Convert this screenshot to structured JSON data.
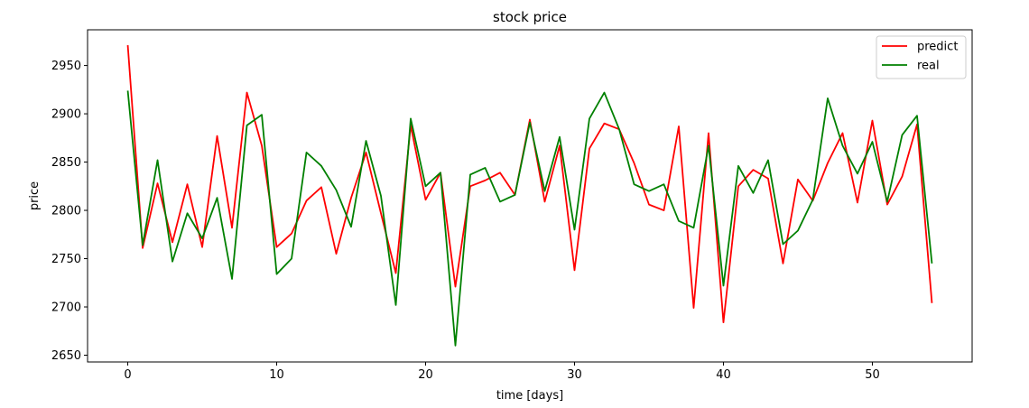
{
  "chart_data": {
    "type": "line",
    "title": "stock price",
    "xlabel": "time [days]",
    "ylabel": "price",
    "xlim": [
      -2.7,
      56.7
    ],
    "ylim": [
      2643,
      2987
    ],
    "xticks": [
      0,
      10,
      20,
      30,
      40,
      50
    ],
    "yticks": [
      2650,
      2700,
      2750,
      2800,
      2850,
      2900,
      2950
    ],
    "grid": false,
    "legend_position": "top-right",
    "x": [
      0,
      1,
      2,
      3,
      4,
      5,
      6,
      7,
      8,
      9,
      10,
      11,
      12,
      13,
      14,
      15,
      16,
      17,
      18,
      19,
      20,
      21,
      22,
      23,
      24,
      25,
      26,
      27,
      28,
      29,
      30,
      31,
      32,
      33,
      34,
      35,
      36,
      37,
      38,
      39,
      40,
      41,
      42,
      43,
      44,
      45,
      46,
      47,
      48,
      49,
      50,
      51,
      52,
      53,
      54
    ],
    "series": [
      {
        "name": "predict",
        "color": "#ff0000",
        "values": [
          2971,
          2761,
          2828,
          2767,
          2827,
          2762,
          2877,
          2782,
          2922,
          2867,
          2762,
          2776,
          2810,
          2824,
          2755,
          2813,
          2860,
          2797,
          2735,
          2888,
          2811,
          2839,
          2721,
          2825,
          2831,
          2839,
          2816,
          2894,
          2809,
          2867,
          2738,
          2864,
          2890,
          2884,
          2849,
          2806,
          2800,
          2887,
          2699,
          2880,
          2684,
          2825,
          2842,
          2833,
          2745,
          2832,
          2810,
          2849,
          2880,
          2808,
          2893,
          2806,
          2835,
          2889,
          2704
        ]
      },
      {
        "name": "real",
        "color": "#008000",
        "values": [
          2924,
          2764,
          2852,
          2747,
          2797,
          2771,
          2813,
          2729,
          2888,
          2899,
          2734,
          2750,
          2860,
          2846,
          2821,
          2783,
          2872,
          2815,
          2702,
          2895,
          2825,
          2839,
          2660,
          2837,
          2844,
          2809,
          2816,
          2891,
          2820,
          2876,
          2780,
          2895,
          2922,
          2884,
          2827,
          2820,
          2827,
          2789,
          2782,
          2867,
          2722,
          2846,
          2818,
          2852,
          2765,
          2779,
          2811,
          2916,
          2867,
          2838,
          2871,
          2809,
          2878,
          2898,
          2745
        ]
      }
    ]
  }
}
